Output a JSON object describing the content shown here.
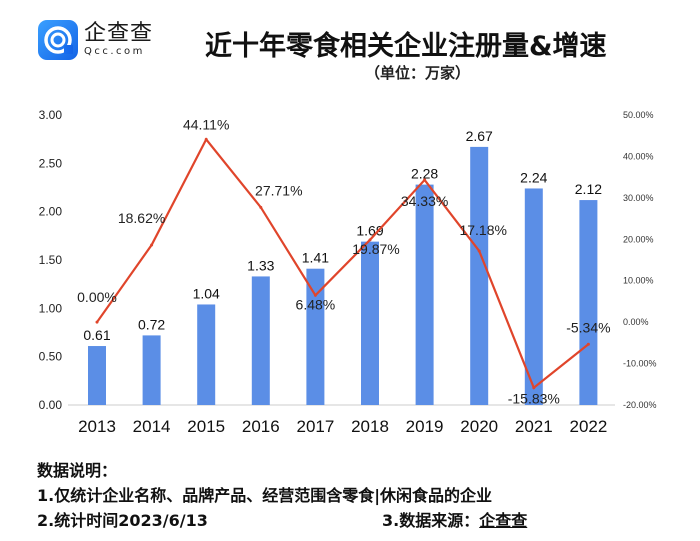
{
  "brand": {
    "name_cn": "企查查",
    "name_en": "Qcc.com",
    "color": "#1a6ff0"
  },
  "header": {
    "title": "近十年零食相关企业注册量&增速",
    "unit": "（单位：万家）"
  },
  "chart_data": {
    "type": "bar+line",
    "categories": [
      "2013",
      "2014",
      "2015",
      "2016",
      "2017",
      "2018",
      "2019",
      "2020",
      "2021",
      "2022"
    ],
    "series": [
      {
        "type": "bar",
        "axis": "left",
        "values": [
          0.61,
          0.72,
          1.04,
          1.33,
          1.41,
          1.69,
          2.28,
          2.67,
          2.24,
          2.12
        ],
        "labels": [
          "0.61",
          "0.72",
          "1.04",
          "1.33",
          "1.41",
          "1.69",
          "2.28",
          "2.67",
          "2.24",
          "2.12"
        ],
        "color": "#5b8ee6"
      },
      {
        "type": "line",
        "axis": "right",
        "values": [
          0.0,
          18.62,
          44.11,
          27.71,
          6.48,
          19.87,
          34.33,
          17.18,
          -15.83,
          -5.34
        ],
        "labels": [
          "0.00%",
          "18.62%",
          "44.11%",
          "27.71%",
          "6.48%",
          "19.87%",
          "34.33%",
          "17.18%",
          "-15.83%",
          "-5.34%"
        ],
        "color": "#e0452b"
      }
    ],
    "left_axis": {
      "range": [
        0,
        3
      ],
      "ticks": [
        "0.00",
        "0.50",
        "1.00",
        "1.50",
        "2.00",
        "2.50",
        "3.00"
      ]
    },
    "right_axis": {
      "range": [
        -20,
        50
      ],
      "ticks": [
        "-20.00%",
        "-10.00%",
        "0.00%",
        "10.00%",
        "20.00%",
        "30.00%",
        "40.00%",
        "50.00%"
      ]
    },
    "grid": false
  },
  "notes": {
    "heading": "数据说明：",
    "line1": "1.仅统计企业名称、品牌产品、经营范围含零食|休闲食品的企业",
    "line2": "2.统计时间2023/6/13",
    "source_label": "3.数据来源：",
    "source_value": "企查查"
  }
}
